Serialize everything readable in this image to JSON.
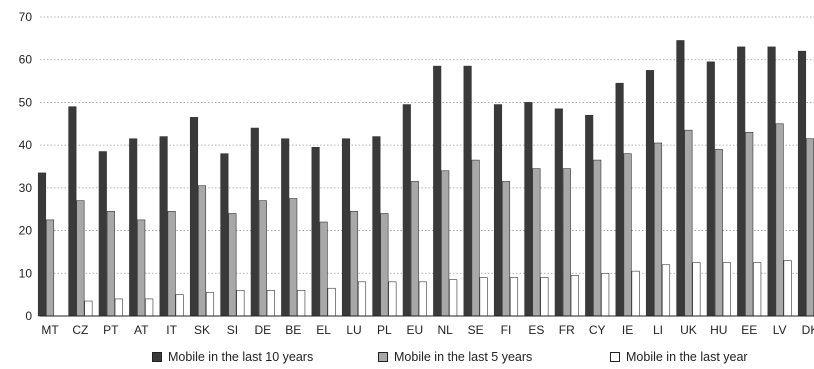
{
  "chart_data": {
    "type": "bar",
    "title": "",
    "xlabel": "",
    "ylabel": "",
    "ylim": [
      0,
      70
    ],
    "yticks": [
      0,
      10,
      20,
      30,
      40,
      50,
      60,
      70
    ],
    "grid": true,
    "legend_position": "bottom",
    "categories": [
      "MT",
      "CZ",
      "PT",
      "AT",
      "IT",
      "SK",
      "SI",
      "DE",
      "BE",
      "EL",
      "LU",
      "PL",
      "EU",
      "NL",
      "SE",
      "FI",
      "ES",
      "FR",
      "CY",
      "IE",
      "LI",
      "UK",
      "HU",
      "EE",
      "LV",
      "DK"
    ],
    "series": [
      {
        "name": "Mobile in the last 10 years",
        "color": "#3a3a3a",
        "values": [
          33.5,
          49,
          38.5,
          41.5,
          42,
          46.5,
          38,
          44,
          41.5,
          39.5,
          41.5,
          42,
          49.5,
          58.5,
          58.5,
          49.5,
          50,
          48.5,
          47,
          54.5,
          57.5,
          64.5,
          59.5,
          63,
          63,
          62
        ]
      },
      {
        "name": "Mobile in the last 5 years",
        "color": "#a8a8a8",
        "values": [
          22.5,
          27,
          24.5,
          22.5,
          24.5,
          30.5,
          24,
          27,
          27.5,
          22,
          24.5,
          24,
          31.5,
          34,
          36.5,
          31.5,
          34.5,
          34.5,
          36.5,
          38,
          40.5,
          43.5,
          39,
          43,
          45,
          41.5
        ]
      },
      {
        "name": "Mobile in the last year",
        "color": "#ffffff",
        "values": [
          0,
          3.5,
          4,
          4,
          5,
          5.5,
          6,
          6,
          6,
          6.5,
          8,
          8,
          8,
          8.5,
          9,
          9,
          9,
          9.5,
          10,
          10.5,
          12,
          12.5,
          12.5,
          12.5,
          13,
          null
        ]
      }
    ]
  },
  "legend": {
    "series_10y": "Mobile in the last 10 years",
    "series_5y": "Mobile in the last 5 years",
    "series_1y": "Mobile in the last year"
  }
}
